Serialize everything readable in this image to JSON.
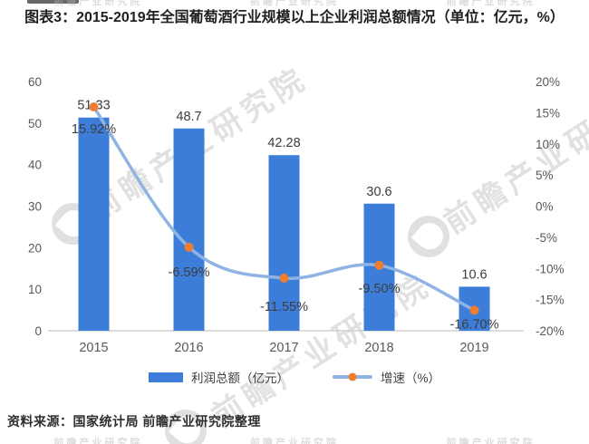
{
  "title": "图表3：2015-2019年全国葡萄酒行业规模以上企业利润总额情况（单位：亿元，%）",
  "source": "资料来源：国家统计局 前瞻产业研究院整理",
  "watermark": {
    "text": "前瞻产业研究院"
  },
  "colors": {
    "bar": "#3C7DDA",
    "line": "#8FB4E3",
    "marker": "#ED7D31",
    "axis_line": "#d0d0d0",
    "tick_text": "#595959",
    "label_text": "#3d3d3d",
    "title_text": "#1f1f1f"
  },
  "chart_data": {
    "type": "bar+line",
    "title": "图表3：2015-2019年全国葡萄酒行业规模以上企业利润总额情况（单位：亿元，%）",
    "categories": [
      "2015",
      "2016",
      "2017",
      "2018",
      "2019"
    ],
    "series": [
      {
        "name": "利润总额（亿元）",
        "type": "bar",
        "axis": "left",
        "values": [
          51.33,
          48.7,
          42.28,
          30.6,
          10.6
        ],
        "labels": [
          "51.33",
          "48.7",
          "42.28",
          "30.6",
          "10.6"
        ]
      },
      {
        "name": "增速（%）",
        "type": "line",
        "axis": "right",
        "values": [
          15.92,
          -6.59,
          -11.55,
          -9.5,
          -16.7
        ],
        "labels": [
          "15.92%",
          "-6.59%",
          "-11.55%",
          "-9.50%",
          "-16.70%"
        ]
      }
    ],
    "left_axis": {
      "ticks": [
        0,
        10,
        20,
        30,
        40,
        50,
        60
      ],
      "min": 0,
      "max": 60
    },
    "right_axis": {
      "ticks": [
        "20%",
        "15%",
        "10%",
        "5%",
        "0%",
        "-5%",
        "-10%",
        "-15%",
        "-20%"
      ],
      "min": -20,
      "max": 20
    },
    "grid": false,
    "legend_position": "bottom",
    "growth_label_dy": [
      29,
      32,
      36,
      30,
      20
    ]
  }
}
